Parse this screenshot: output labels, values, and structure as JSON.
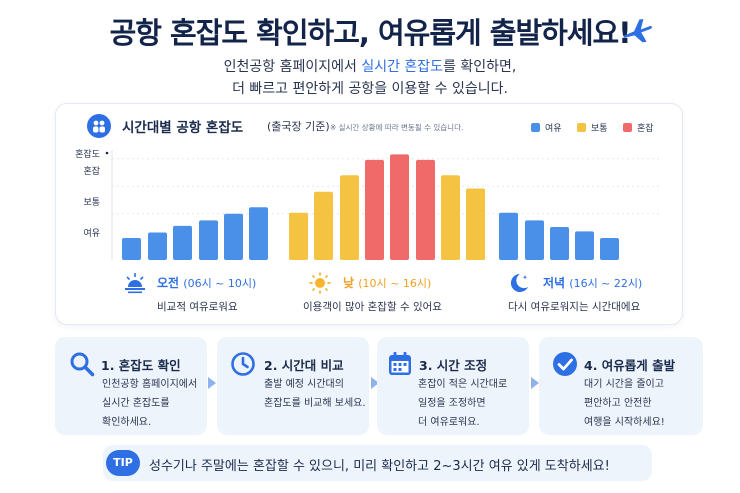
{
  "header": {
    "title": "공항 혼잡도 확인하고, 여유롭게 출발하세요!",
    "subtitle_line1_pre": "인천공항 홈페이지에서 ",
    "subtitle_line1_highlight": "실시간 혼잡도",
    "subtitle_line1_post": "를 확인하면,",
    "subtitle_line2": "더 빠르고 편안하게 공항을 이용할 수 있습니다."
  },
  "colors": {
    "free": "#4a90e8",
    "normal": "#f5c342",
    "busy": "#f06a6a",
    "accent": "#2f6fe4"
  },
  "chart": {
    "title": "시간대별 공항 혼잡도",
    "subtitle": "(출국장 기준)",
    "note": "※ 실시간 상황에 따라 변동될 수 있습니다.",
    "legend": [
      "여유",
      "보통",
      "혼잡"
    ],
    "y_axis_title": "혼잡도",
    "y_levels": [
      "혼잡",
      "보통",
      "여유"
    ],
    "periods": [
      {
        "label": "오전",
        "time": "(06시 ~ 10시)",
        "desc": "비교적 여유로워요",
        "icon": "sunrise-icon"
      },
      {
        "label": "낮",
        "time": "(10시 ~ 16시)",
        "desc": "이용객이 많아 혼잡할 수 있어요",
        "icon": "sun-icon"
      },
      {
        "label": "저녁",
        "time": "(16시 ~ 22시)",
        "desc": "다시 여유로워지는 시간대에요",
        "icon": "moon-icon"
      }
    ]
  },
  "chart_data": {
    "type": "bar",
    "title": "시간대별 공항 혼잡도",
    "ylabel": "혼잡도",
    "y_tick_labels": [
      "여유",
      "보통",
      "혼잡"
    ],
    "grid": true,
    "legend_position": "top-right",
    "series": [
      {
        "name": "여유",
        "values": [
          0.2,
          0.25,
          0.31,
          0.36,
          0.42,
          0.48,
          null,
          null,
          null,
          null,
          null,
          null,
          null,
          0.43,
          0.43,
          0.36,
          0.3,
          0.26,
          0.2
        ]
      },
      {
        "name": "보통",
        "values": [
          null,
          null,
          null,
          null,
          null,
          null,
          0.43,
          0.62,
          0.77,
          null,
          null,
          null,
          0.77,
          0.65,
          null,
          null,
          null,
          null,
          null
        ]
      },
      {
        "name": "혼잡",
        "values": [
          null,
          null,
          null,
          null,
          null,
          null,
          null,
          null,
          null,
          0.91,
          0.96,
          0.91,
          null,
          null,
          null,
          null,
          null,
          null,
          null
        ]
      }
    ]
  },
  "steps": [
    {
      "title": "1. 혼잡도 확인",
      "lines": [
        "인천공항 홈페이지에서",
        "실시간 혼잡도를",
        "확인하세요."
      ],
      "icon": "search-icon"
    },
    {
      "title": "2. 시간대 비교",
      "lines": [
        "출발 예정 시간대의",
        "혼잡도를 비교해 보세요."
      ],
      "icon": "clock-icon"
    },
    {
      "title": "3. 시간 조정",
      "lines": [
        "혼잡이 적은 시간대로",
        "일정을 조정하면",
        "더 여유로워요."
      ],
      "icon": "calendar-icon"
    },
    {
      "title": "4. 여유롭게 출발",
      "lines": [
        "대기 시간을 줄이고",
        "편안하고 안전한",
        "여행을 시작하세요!"
      ],
      "icon": "check-circle-icon"
    }
  ],
  "tip": {
    "badge": "TIP",
    "text": "성수기나 주말에는 혼잡할 수 있으니, 미리 확인하고 2~3시간 여유 있게 도착하세요!"
  }
}
